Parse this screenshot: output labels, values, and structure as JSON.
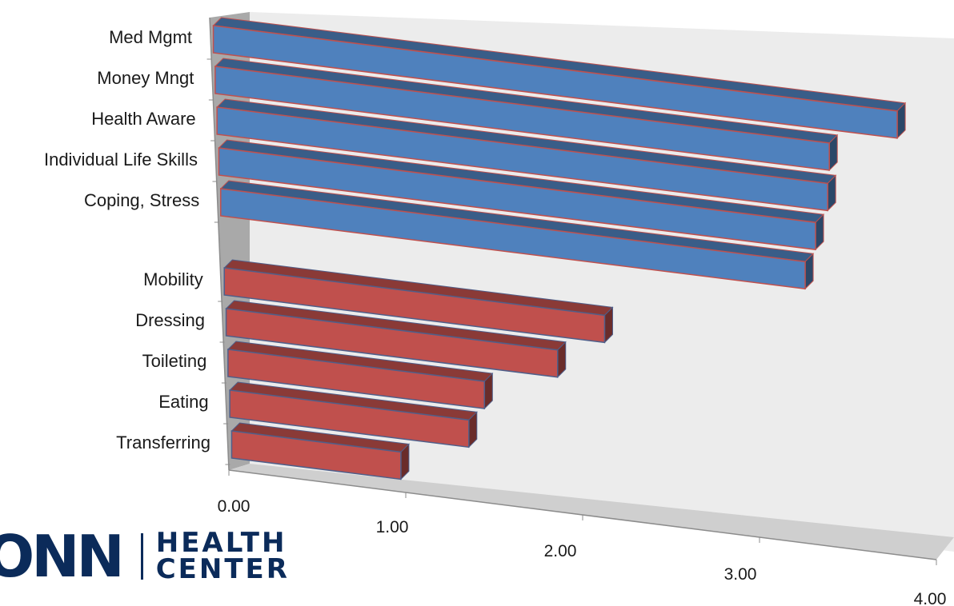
{
  "chart_data": {
    "type": "bar",
    "orientation": "horizontal",
    "three_d": true,
    "title": "",
    "xlabel": "",
    "ylabel": "",
    "xlim": [
      0,
      4
    ],
    "x_ticks": [
      "0.00",
      "1.00",
      "2.00",
      "3.00",
      "4.00"
    ],
    "legend": "none",
    "grid": false,
    "groups": [
      {
        "color": "#4f81bd",
        "categories": [
          "Med Mgmt",
          "Money Mngt",
          "Health Aware",
          "Individual Life Skills",
          "Coping, Stress"
        ],
        "values": [
          3.92,
          3.52,
          3.5,
          3.42,
          3.35
        ]
      },
      {
        "color": "#c0504d",
        "categories": [
          "Mobility",
          "Dressing",
          "Toileting",
          "Eating",
          "Transferring"
        ],
        "values": [
          2.18,
          1.9,
          1.47,
          1.37,
          0.97
        ]
      }
    ]
  },
  "logo": {
    "word": "ONN",
    "line1": "HEALTH",
    "line2": "CENTER"
  }
}
